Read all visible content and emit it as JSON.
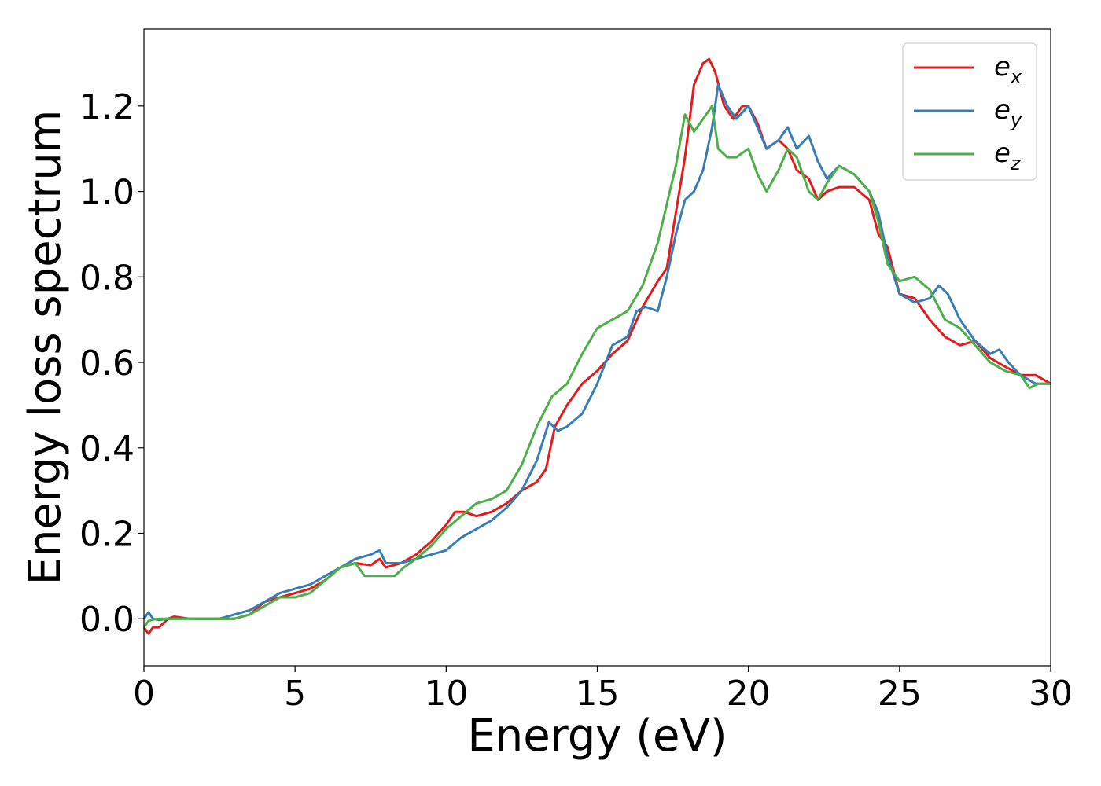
{
  "chart_data": {
    "type": "line",
    "xlabel": "Energy (eV)",
    "ylabel": "Energy loss spectrum",
    "xlim": [
      0,
      30
    ],
    "ylim": [
      -0.11,
      1.38
    ],
    "xticks": [
      0,
      5,
      10,
      15,
      20,
      25,
      30
    ],
    "yticks": [
      0.0,
      0.2,
      0.4,
      0.6,
      0.8,
      1.0,
      1.2
    ],
    "xtick_labels": [
      "0",
      "5",
      "10",
      "15",
      "20",
      "25",
      "30"
    ],
    "ytick_labels": [
      "0.0",
      "0.2",
      "0.4",
      "0.6",
      "0.8",
      "1.0",
      "1.2"
    ],
    "grid": false,
    "legend_position": "top-right",
    "series": [
      {
        "name": "e",
        "subscript": "x",
        "color": "#e41a1c",
        "x": [
          0,
          0.15,
          0.3,
          0.5,
          0.8,
          1.0,
          1.5,
          2.0,
          2.5,
          3.0,
          3.5,
          4.0,
          4.5,
          5.0,
          5.5,
          6.0,
          6.5,
          7.0,
          7.5,
          7.8,
          8.0,
          8.5,
          9.0,
          9.5,
          10.0,
          10.3,
          10.6,
          11.0,
          11.5,
          12.0,
          12.5,
          13.0,
          13.3,
          13.6,
          14.0,
          14.5,
          15.0,
          15.5,
          16.0,
          16.5,
          17.0,
          17.3,
          17.6,
          17.9,
          18.2,
          18.5,
          18.7,
          18.9,
          19.2,
          19.5,
          19.8,
          20.0,
          20.3,
          20.6,
          21.0,
          21.3,
          21.6,
          22.0,
          22.3,
          22.6,
          23.0,
          23.5,
          24.0,
          24.3,
          24.6,
          25.0,
          25.5,
          26.0,
          26.5,
          27.0,
          27.5,
          28.0,
          28.5,
          29.0,
          29.5,
          30.0
        ],
        "y": [
          -0.02,
          -0.035,
          -0.02,
          -0.02,
          0.0,
          0.005,
          0.0,
          0.0,
          0.0,
          0.0,
          0.01,
          0.04,
          0.05,
          0.06,
          0.07,
          0.09,
          0.12,
          0.13,
          0.125,
          0.14,
          0.12,
          0.13,
          0.15,
          0.18,
          0.22,
          0.25,
          0.25,
          0.24,
          0.25,
          0.27,
          0.3,
          0.32,
          0.35,
          0.45,
          0.5,
          0.55,
          0.58,
          0.62,
          0.65,
          0.73,
          0.79,
          0.82,
          0.95,
          1.08,
          1.25,
          1.3,
          1.31,
          1.28,
          1.2,
          1.17,
          1.2,
          1.2,
          1.16,
          1.1,
          1.12,
          1.1,
          1.05,
          1.03,
          0.98,
          1.0,
          1.01,
          1.01,
          0.98,
          0.9,
          0.87,
          0.76,
          0.75,
          0.7,
          0.66,
          0.64,
          0.65,
          0.61,
          0.59,
          0.57,
          0.57,
          0.55
        ]
      },
      {
        "name": "e",
        "subscript": "y",
        "color": "#377eb8",
        "x": [
          0,
          0.15,
          0.3,
          0.5,
          0.8,
          1.0,
          1.5,
          2.0,
          2.5,
          3.0,
          3.5,
          4.0,
          4.5,
          5.0,
          5.5,
          6.0,
          6.5,
          7.0,
          7.5,
          7.8,
          8.0,
          8.5,
          9.0,
          9.5,
          10.0,
          10.5,
          11.0,
          11.5,
          12.0,
          12.5,
          13.0,
          13.4,
          13.7,
          14.0,
          14.5,
          15.0,
          15.5,
          16.0,
          16.3,
          16.6,
          17.0,
          17.3,
          17.6,
          17.9,
          18.2,
          18.5,
          18.8,
          19.0,
          19.3,
          19.6,
          20.0,
          20.3,
          20.6,
          21.0,
          21.3,
          21.6,
          22.0,
          22.3,
          22.6,
          23.0,
          23.5,
          24.0,
          24.3,
          24.6,
          25.0,
          25.5,
          26.0,
          26.3,
          26.6,
          27.0,
          27.5,
          28.0,
          28.3,
          28.6,
          29.0,
          29.5,
          30.0
        ],
        "y": [
          0.0,
          0.015,
          0.0,
          -0.003,
          0.0,
          0.0,
          0.0,
          0.0,
          0.0,
          0.01,
          0.02,
          0.04,
          0.06,
          0.07,
          0.08,
          0.1,
          0.12,
          0.14,
          0.15,
          0.16,
          0.13,
          0.13,
          0.14,
          0.15,
          0.16,
          0.19,
          0.21,
          0.23,
          0.26,
          0.3,
          0.37,
          0.46,
          0.44,
          0.45,
          0.48,
          0.55,
          0.64,
          0.66,
          0.72,
          0.73,
          0.72,
          0.8,
          0.9,
          0.98,
          1.0,
          1.05,
          1.15,
          1.25,
          1.2,
          1.17,
          1.2,
          1.15,
          1.1,
          1.12,
          1.15,
          1.1,
          1.13,
          1.07,
          1.03,
          1.06,
          1.04,
          1.0,
          0.95,
          0.85,
          0.76,
          0.74,
          0.75,
          0.78,
          0.76,
          0.7,
          0.65,
          0.62,
          0.63,
          0.6,
          0.57,
          0.55,
          0.55
        ]
      },
      {
        "name": "e",
        "subscript": "z",
        "color": "#4daf4a",
        "x": [
          0,
          0.15,
          0.3,
          0.5,
          0.8,
          1.0,
          1.5,
          2.0,
          2.5,
          3.0,
          3.5,
          4.0,
          4.5,
          5.0,
          5.5,
          6.0,
          6.5,
          7.0,
          7.3,
          7.6,
          8.0,
          8.3,
          8.6,
          9.0,
          9.5,
          10.0,
          10.5,
          11.0,
          11.5,
          12.0,
          12.5,
          13.0,
          13.5,
          14.0,
          14.5,
          15.0,
          15.5,
          16.0,
          16.5,
          17.0,
          17.3,
          17.6,
          17.9,
          18.2,
          18.5,
          18.8,
          19.0,
          19.3,
          19.6,
          20.0,
          20.3,
          20.6,
          21.0,
          21.3,
          21.6,
          22.0,
          22.3,
          22.6,
          23.0,
          23.5,
          24.0,
          24.3,
          24.6,
          25.0,
          25.5,
          26.0,
          26.5,
          27.0,
          27.5,
          28.0,
          28.5,
          29.0,
          29.3,
          29.6,
          30.0
        ],
        "y": [
          -0.02,
          -0.005,
          -0.002,
          0.0,
          0.0,
          0.0,
          0.0,
          0.0,
          0.0,
          0.0,
          0.01,
          0.03,
          0.05,
          0.05,
          0.06,
          0.09,
          0.12,
          0.13,
          0.1,
          0.1,
          0.1,
          0.1,
          0.12,
          0.14,
          0.17,
          0.21,
          0.24,
          0.27,
          0.28,
          0.3,
          0.36,
          0.45,
          0.52,
          0.55,
          0.62,
          0.68,
          0.7,
          0.72,
          0.78,
          0.88,
          0.97,
          1.06,
          1.18,
          1.14,
          1.17,
          1.2,
          1.1,
          1.08,
          1.08,
          1.1,
          1.04,
          1.0,
          1.05,
          1.1,
          1.08,
          1.0,
          0.98,
          1.02,
          1.06,
          1.04,
          1.0,
          0.93,
          0.83,
          0.79,
          0.8,
          0.77,
          0.7,
          0.68,
          0.64,
          0.6,
          0.58,
          0.57,
          0.54,
          0.55,
          0.55
        ]
      }
    ]
  }
}
